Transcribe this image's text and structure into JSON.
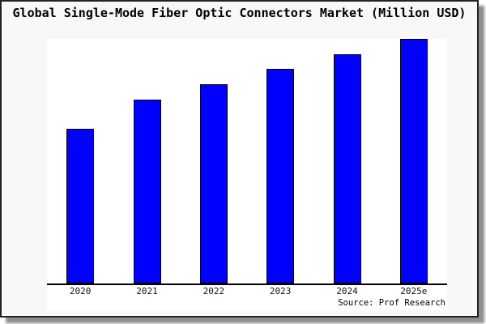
{
  "window": {
    "background_color": "#f8f8f8",
    "border_color": "#222222"
  },
  "chart_data": {
    "type": "bar",
    "title": "Global Single-Mode Fiber Optic Connectors Market (Million USD)",
    "categories": [
      "2020",
      "2021",
      "2022",
      "2023",
      "2024",
      "2025e"
    ],
    "values": [
      63,
      75,
      81.5,
      87.7,
      93.6,
      100
    ],
    "value_note": "No y-axis or data labels shown; values are relative bar heights with 2025e = 100",
    "xlabel": "",
    "ylabel": "",
    "ylim": [
      0,
      101
    ],
    "grid": false,
    "legend": null,
    "bar_color": "#0000ff",
    "bar_border_color": "#000000",
    "plot_background": "#ffffff",
    "axis_color": "#000000",
    "source": "Source: Prof Research"
  }
}
